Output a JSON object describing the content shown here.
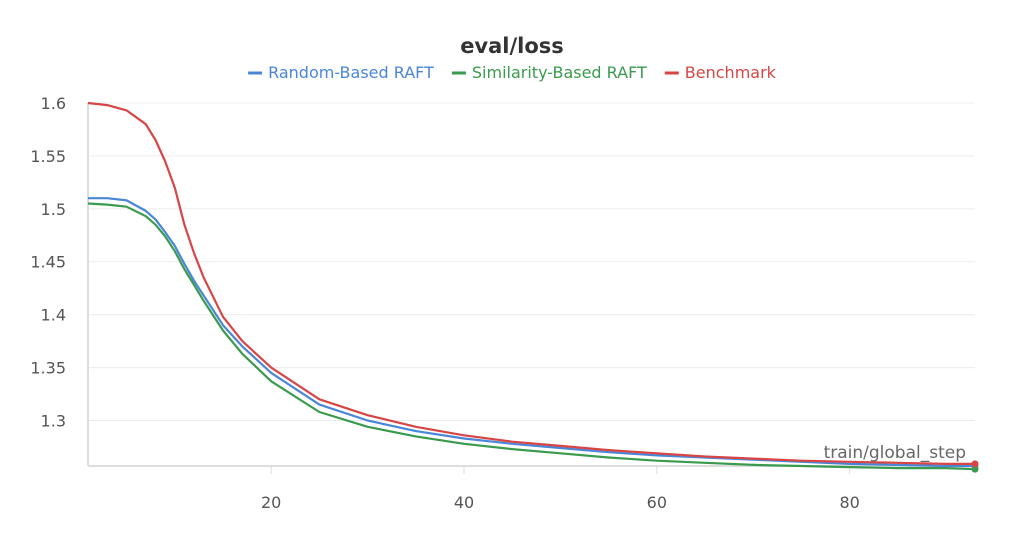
{
  "chart_data": {
    "type": "line",
    "title": "eval/loss",
    "xlabel": "train/global_step",
    "ylabel": "",
    "xlim": [
      1,
      93
    ],
    "ylim": [
      1.257,
      1.6
    ],
    "xticks": [
      20,
      40,
      60,
      80
    ],
    "xtick_labels": [
      "20",
      "40",
      "60",
      "80"
    ],
    "yticks": [
      1.3,
      1.35,
      1.4,
      1.45,
      1.5,
      1.55,
      1.6
    ],
    "ytick_labels": [
      "1.3",
      "1.35",
      "1.4",
      "1.45",
      "1.5",
      "1.55",
      "1.6"
    ],
    "grid": true,
    "legend_position": "top-center",
    "x": [
      1,
      3,
      5,
      7,
      8,
      9,
      10,
      11,
      12,
      13,
      15,
      17,
      20,
      25,
      30,
      35,
      40,
      45,
      50,
      55,
      60,
      65,
      70,
      75,
      80,
      85,
      90,
      93
    ],
    "series": [
      {
        "name": "Random-Based RAFT",
        "color": "#4a86d8",
        "values": [
          1.51,
          1.51,
          1.508,
          1.498,
          1.49,
          1.478,
          1.465,
          1.448,
          1.432,
          1.418,
          1.39,
          1.37,
          1.345,
          1.315,
          1.3,
          1.29,
          1.283,
          1.278,
          1.274,
          1.27,
          1.267,
          1.265,
          1.263,
          1.261,
          1.259,
          1.258,
          1.257,
          1.257
        ]
      },
      {
        "name": "Similarity-Based RAFT",
        "color": "#3a9a4e",
        "values": [
          1.505,
          1.504,
          1.502,
          1.493,
          1.485,
          1.474,
          1.46,
          1.443,
          1.428,
          1.413,
          1.385,
          1.363,
          1.337,
          1.308,
          1.294,
          1.285,
          1.278,
          1.273,
          1.269,
          1.265,
          1.262,
          1.26,
          1.258,
          1.257,
          1.256,
          1.255,
          1.255,
          1.254
        ]
      },
      {
        "name": "Benchmark",
        "color": "#d84545",
        "values": [
          1.6,
          1.598,
          1.593,
          1.58,
          1.565,
          1.545,
          1.52,
          1.485,
          1.458,
          1.435,
          1.398,
          1.375,
          1.35,
          1.32,
          1.305,
          1.294,
          1.286,
          1.28,
          1.276,
          1.272,
          1.269,
          1.266,
          1.264,
          1.262,
          1.261,
          1.26,
          1.259,
          1.259
        ]
      }
    ]
  }
}
